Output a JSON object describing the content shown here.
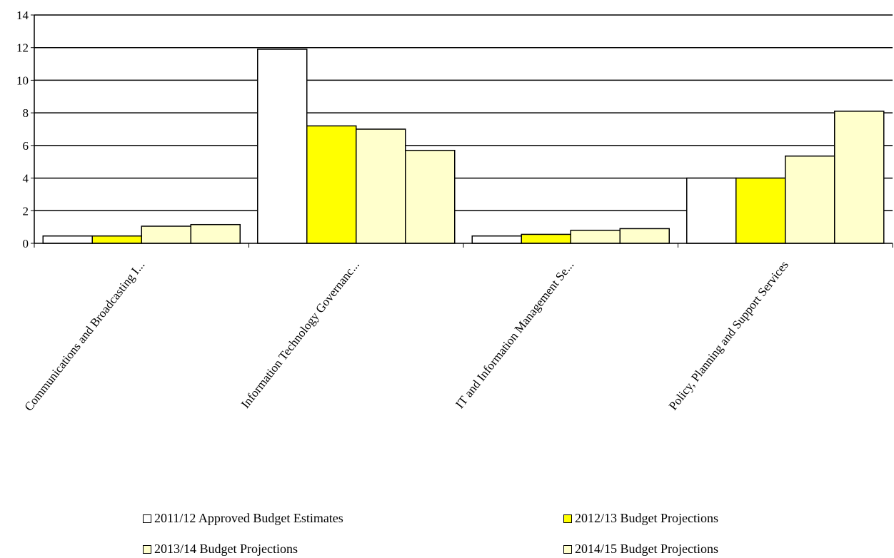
{
  "chart_data": {
    "type": "bar",
    "categories": [
      "Communications and Broadcasting I...",
      "Information Technology Governanc...",
      "IT and Information Management Se...",
      "Policy, Planning and Support Services"
    ],
    "series": [
      {
        "name": "2011/12 Approved Budget Estimates",
        "values": [
          0.45,
          11.9,
          0.45,
          4.0
        ],
        "color": "#FFFFFF"
      },
      {
        "name": "2012/13 Budget Projections",
        "values": [
          0.45,
          7.2,
          0.55,
          4.0
        ],
        "color": "#FFFF00"
      },
      {
        "name": "2013/14 Budget Projections",
        "values": [
          1.05,
          7.0,
          0.8,
          5.35
        ],
        "color": "#FFFFCC"
      },
      {
        "name": "2014/15 Budget Projections",
        "values": [
          1.15,
          5.7,
          0.9,
          8.1
        ],
        "color": "#FFFFCC"
      }
    ],
    "ylim": [
      0,
      14
    ],
    "yticks": [
      0,
      2,
      4,
      6,
      8,
      10,
      12,
      14
    ],
    "grid": true,
    "legend_position": "bottom"
  }
}
